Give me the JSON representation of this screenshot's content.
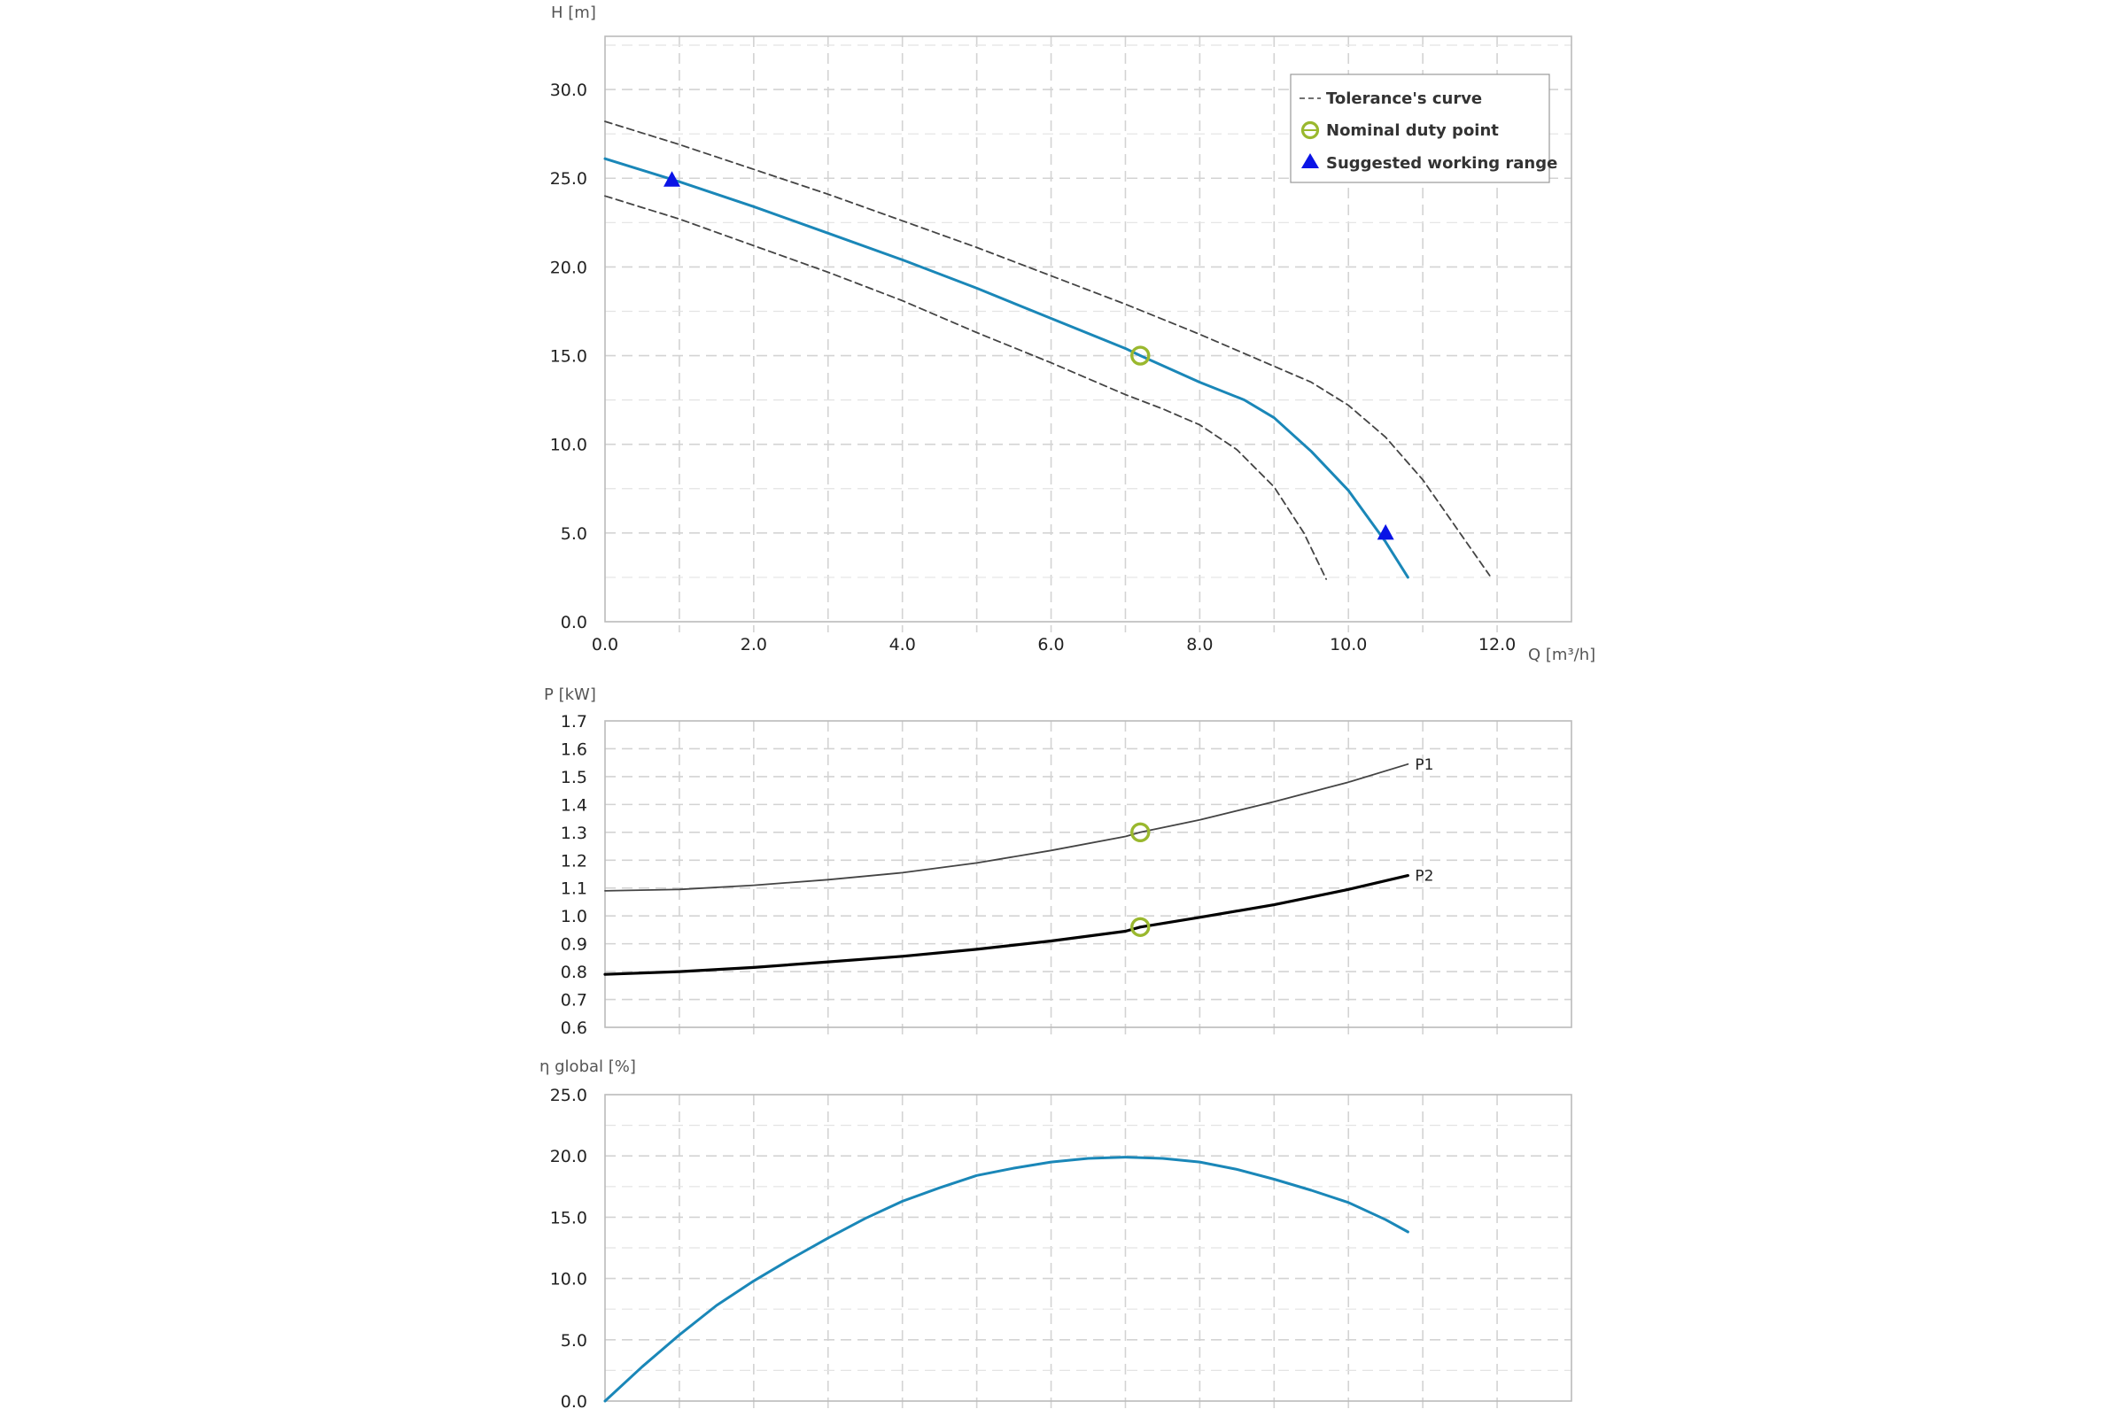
{
  "colors": {
    "nominal": "#9ab82e",
    "suggested": "#0a14e6",
    "curve": "#1a87b8",
    "tolerance": "#444444",
    "grid": "#d3d3d3",
    "frame": "#bbbbbb"
  },
  "chart_data": [
    {
      "type": "line",
      "title": "",
      "xlabel": "Q [m³/h]",
      "ylabel": "H [m]",
      "xlim": [
        0,
        13
      ],
      "ylim": [
        0,
        33
      ],
      "x_ticks": [
        "0.0",
        "2.0",
        "4.0",
        "6.0",
        "8.0",
        "10.0",
        "12.0"
      ],
      "y_ticks": [
        "0.0",
        "5.0",
        "10.0",
        "15.0",
        "20.0",
        "25.0",
        "30.0"
      ],
      "grid": true,
      "legend": {
        "placement": "top-right",
        "entries": [
          "Tolerance's curve",
          "Nominal duty point",
          "Suggested working range"
        ]
      },
      "series": [
        {
          "x": [
            0,
            1,
            2,
            3,
            4,
            5,
            6,
            7,
            7.2,
            8,
            8.6,
            9,
            9.5,
            10,
            10.5,
            10.8
          ],
          "values": [
            26.1,
            24.8,
            23.4,
            21.9,
            20.4,
            18.8,
            17.1,
            15.4,
            15.0,
            13.5,
            12.5,
            11.5,
            9.6,
            7.4,
            4.5,
            2.5
          ]
        },
        {
          "style": "tolerance-upper",
          "x": [
            0,
            1,
            2,
            3,
            4,
            5,
            6,
            7,
            8,
            9,
            9.5,
            10,
            10.5,
            11,
            11.5,
            11.9
          ],
          "values": [
            28.2,
            26.9,
            25.5,
            24.1,
            22.6,
            21.1,
            19.5,
            17.9,
            16.2,
            14.4,
            13.5,
            12.2,
            10.4,
            8.0,
            5.0,
            2.6
          ]
        },
        {
          "style": "tolerance-lower",
          "x": [
            0,
            1,
            2,
            3,
            4,
            5,
            6,
            7,
            7.5,
            8,
            8.5,
            9,
            9.4,
            9.7
          ],
          "values": [
            24.0,
            22.7,
            21.2,
            19.7,
            18.1,
            16.3,
            14.6,
            12.8,
            12.0,
            11.1,
            9.7,
            7.6,
            5.0,
            2.4
          ]
        }
      ],
      "nominal_duty_point": {
        "x": 7.2,
        "y": 15.0
      },
      "suggested_working_range": [
        {
          "x": 0.9,
          "y": 24.9
        },
        {
          "x": 10.5,
          "y": 5.0
        }
      ]
    },
    {
      "type": "line",
      "title": "",
      "xlabel": "",
      "ylabel": "P [kW]",
      "xlim": [
        0,
        13
      ],
      "ylim": [
        0.6,
        1.7
      ],
      "y_ticks": [
        "0.6",
        "0.7",
        "0.8",
        "0.9",
        "1.0",
        "1.1",
        "1.2",
        "1.3",
        "1.4",
        "1.5",
        "1.6",
        "1.7"
      ],
      "grid": true,
      "series": [
        {
          "name": "P1",
          "x": [
            0,
            1,
            2,
            3,
            4,
            5,
            6,
            7,
            7.2,
            8,
            9,
            10,
            10.8
          ],
          "values": [
            1.09,
            1.095,
            1.11,
            1.13,
            1.155,
            1.19,
            1.235,
            1.285,
            1.3,
            1.345,
            1.41,
            1.48,
            1.545
          ]
        },
        {
          "name": "P2",
          "x": [
            0,
            1,
            2,
            3,
            4,
            5,
            6,
            7,
            7.2,
            8,
            9,
            10,
            10.8
          ],
          "values": [
            0.79,
            0.8,
            0.815,
            0.835,
            0.855,
            0.88,
            0.91,
            0.945,
            0.96,
            0.995,
            1.04,
            1.095,
            1.145
          ]
        }
      ],
      "nominal_duty_points": [
        {
          "x": 7.2,
          "y": 1.3
        },
        {
          "x": 7.2,
          "y": 0.96
        }
      ]
    },
    {
      "type": "line",
      "title": "",
      "xlabel": "",
      "ylabel": "η global [%]",
      "xlim": [
        0,
        13
      ],
      "ylim": [
        0,
        25
      ],
      "y_ticks": [
        "0.0",
        "5.0",
        "10.0",
        "15.0",
        "20.0",
        "25.0"
      ],
      "grid": true,
      "series": [
        {
          "x": [
            0,
            0.5,
            1,
            1.5,
            2,
            2.5,
            3,
            3.5,
            4,
            4.5,
            5,
            5.5,
            6,
            6.5,
            7,
            7.5,
            8,
            8.5,
            9,
            9.5,
            10,
            10.5,
            10.8
          ],
          "values": [
            0,
            2.8,
            5.4,
            7.8,
            9.8,
            11.6,
            13.3,
            14.9,
            16.3,
            17.4,
            18.4,
            19.0,
            19.5,
            19.8,
            19.9,
            19.8,
            19.5,
            18.9,
            18.1,
            17.2,
            16.2,
            14.8,
            13.8
          ]
        }
      ]
    }
  ]
}
